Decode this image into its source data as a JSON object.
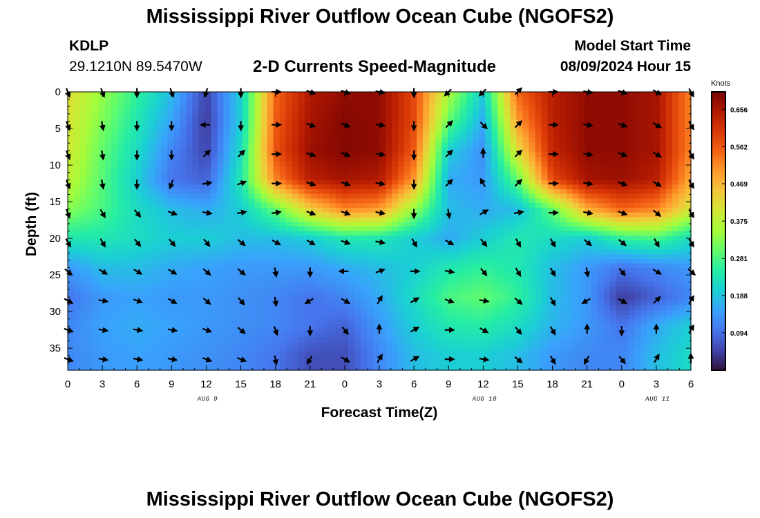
{
  "header": {
    "title": "Mississippi River Outflow Ocean Cube (NGOFS2)",
    "footer_title": "Mississippi River Outflow Ocean Cube (NGOFS2)",
    "station_id": "KDLP",
    "station_coords": "29.1210N  89.5470W",
    "subtitle": "2-D Currents Speed-Magnitude",
    "model_start_label": "Model Start Time",
    "model_start_value": "08/09/2024 Hour 15"
  },
  "colors": {
    "colormap": [
      "#30123b",
      "#4145ab",
      "#4675ed",
      "#39a2fc",
      "#1bcfd4",
      "#24eca6",
      "#61fc6c",
      "#a4fc3b",
      "#d1e834",
      "#f3c63a",
      "#fe9b2d",
      "#f36315",
      "#d93806",
      "#b11901",
      "#7a0403"
    ]
  },
  "chart_data": {
    "type": "heatmap",
    "title": "2-D Currents Speed-Magnitude",
    "xlabel": "Forecast Time(Z)",
    "ylabel": "Depth (ft)",
    "x_tick_labels": [
      "0",
      "3",
      "6",
      "9",
      "12",
      "15",
      "18",
      "21",
      "0",
      "3",
      "6",
      "9",
      "12",
      "15",
      "18",
      "21",
      "0",
      "3",
      "6"
    ],
    "x_range_hours": [
      0,
      54
    ],
    "date_labels": [
      {
        "label": "AUG 9",
        "hour": 12
      },
      {
        "label": "AUG 10",
        "hour": 36
      },
      {
        "label": "AUG 11",
        "hour": 51
      }
    ],
    "y_ticks": [
      0,
      5,
      10,
      15,
      20,
      25,
      30,
      35
    ],
    "y_range_ft": [
      0,
      38
    ],
    "colorbar": {
      "label": "Knots",
      "min": 0,
      "max": 0.7,
      "ticks": [
        "0.656",
        "0.562",
        "0.469",
        "0.375",
        "0.281",
        "0.188",
        "0.094"
      ],
      "tick_values": [
        0.656,
        0.562,
        0.469,
        0.375,
        0.281,
        0.188,
        0.094
      ]
    },
    "speed_depths_ft": [
      0,
      4,
      8,
      12,
      16,
      20,
      24,
      28,
      32,
      36
    ],
    "speed_hours": [
      0,
      3,
      6,
      9,
      12,
      15,
      18,
      21,
      24,
      27,
      30,
      33,
      36,
      39,
      42,
      45,
      48,
      51,
      54
    ],
    "speed_knots": [
      [
        0.42,
        0.34,
        0.26,
        0.18,
        0.05,
        0.2,
        0.55,
        0.65,
        0.68,
        0.68,
        0.58,
        0.36,
        0.2,
        0.55,
        0.64,
        0.68,
        0.68,
        0.66,
        0.52
      ],
      [
        0.41,
        0.32,
        0.24,
        0.15,
        0.04,
        0.2,
        0.56,
        0.66,
        0.69,
        0.68,
        0.58,
        0.3,
        0.16,
        0.5,
        0.64,
        0.68,
        0.68,
        0.66,
        0.52
      ],
      [
        0.4,
        0.3,
        0.22,
        0.12,
        0.05,
        0.22,
        0.57,
        0.67,
        0.69,
        0.68,
        0.56,
        0.2,
        0.13,
        0.42,
        0.63,
        0.68,
        0.68,
        0.66,
        0.52
      ],
      [
        0.38,
        0.29,
        0.2,
        0.1,
        0.08,
        0.24,
        0.52,
        0.64,
        0.66,
        0.65,
        0.5,
        0.16,
        0.14,
        0.3,
        0.58,
        0.66,
        0.67,
        0.64,
        0.48
      ],
      [
        0.33,
        0.28,
        0.22,
        0.18,
        0.16,
        0.2,
        0.3,
        0.44,
        0.52,
        0.5,
        0.34,
        0.18,
        0.16,
        0.18,
        0.3,
        0.48,
        0.55,
        0.52,
        0.4
      ],
      [
        0.24,
        0.24,
        0.22,
        0.2,
        0.2,
        0.18,
        0.18,
        0.2,
        0.24,
        0.24,
        0.2,
        0.16,
        0.2,
        0.24,
        0.22,
        0.2,
        0.26,
        0.28,
        0.22
      ],
      [
        0.14,
        0.18,
        0.18,
        0.16,
        0.15,
        0.14,
        0.14,
        0.14,
        0.16,
        0.18,
        0.2,
        0.24,
        0.26,
        0.24,
        0.18,
        0.14,
        0.1,
        0.12,
        0.14
      ],
      [
        0.1,
        0.14,
        0.15,
        0.14,
        0.14,
        0.13,
        0.12,
        0.1,
        0.12,
        0.16,
        0.22,
        0.28,
        0.3,
        0.26,
        0.18,
        0.14,
        0.04,
        0.08,
        0.12
      ],
      [
        0.12,
        0.15,
        0.16,
        0.15,
        0.14,
        0.13,
        0.12,
        0.1,
        0.08,
        0.14,
        0.2,
        0.24,
        0.25,
        0.22,
        0.17,
        0.14,
        0.1,
        0.16,
        0.2
      ],
      [
        0.12,
        0.14,
        0.15,
        0.14,
        0.13,
        0.12,
        0.1,
        0.06,
        0.06,
        0.12,
        0.18,
        0.2,
        0.2,
        0.18,
        0.14,
        0.12,
        0.12,
        0.18,
        0.22
      ]
    ],
    "vector_depths_ft": [
      0,
      4.5,
      8.5,
      12.5,
      16.5,
      20.5,
      24.5,
      28.5,
      32.5,
      36.5
    ],
    "vector_hours": [
      0,
      3,
      6,
      9,
      12,
      15,
      18,
      21,
      24,
      27,
      30,
      33,
      36,
      39,
      42,
      45,
      48,
      51,
      54
    ],
    "vector_direction_deg": [
      [
        160,
        160,
        180,
        160,
        200,
        180,
        90,
        110,
        110,
        100,
        180,
        225,
        225,
        45,
        90,
        100,
        110,
        120,
        150
      ],
      [
        160,
        170,
        180,
        180,
        270,
        180,
        90,
        110,
        110,
        100,
        180,
        45,
        135,
        45,
        90,
        100,
        110,
        120,
        150
      ],
      [
        160,
        170,
        180,
        180,
        45,
        45,
        90,
        110,
        110,
        100,
        180,
        45,
        0,
        45,
        90,
        100,
        110,
        120,
        150
      ],
      [
        160,
        170,
        180,
        200,
        80,
        70,
        90,
        110,
        110,
        100,
        180,
        45,
        330,
        45,
        90,
        100,
        110,
        120,
        150
      ],
      [
        160,
        150,
        140,
        110,
        100,
        80,
        80,
        110,
        110,
        100,
        180,
        170,
        60,
        80,
        90,
        100,
        110,
        130,
        150
      ],
      [
        150,
        150,
        140,
        140,
        140,
        130,
        120,
        120,
        110,
        100,
        150,
        120,
        140,
        150,
        150,
        130,
        130,
        150,
        150
      ],
      [
        130,
        120,
        120,
        120,
        130,
        130,
        170,
        180,
        270,
        70,
        90,
        100,
        140,
        150,
        150,
        170,
        140,
        120,
        130
      ],
      [
        120,
        100,
        110,
        120,
        130,
        140,
        170,
        240,
        120,
        30,
        60,
        110,
        100,
        130,
        150,
        240,
        120,
        45,
        30
      ],
      [
        110,
        100,
        100,
        100,
        110,
        130,
        160,
        180,
        140,
        0,
        60,
        90,
        120,
        140,
        150,
        0,
        180,
        0,
        30
      ],
      [
        110,
        100,
        100,
        100,
        110,
        110,
        170,
        210,
        120,
        30,
        60,
        90,
        100,
        130,
        150,
        210,
        140,
        30,
        0
      ]
    ]
  }
}
